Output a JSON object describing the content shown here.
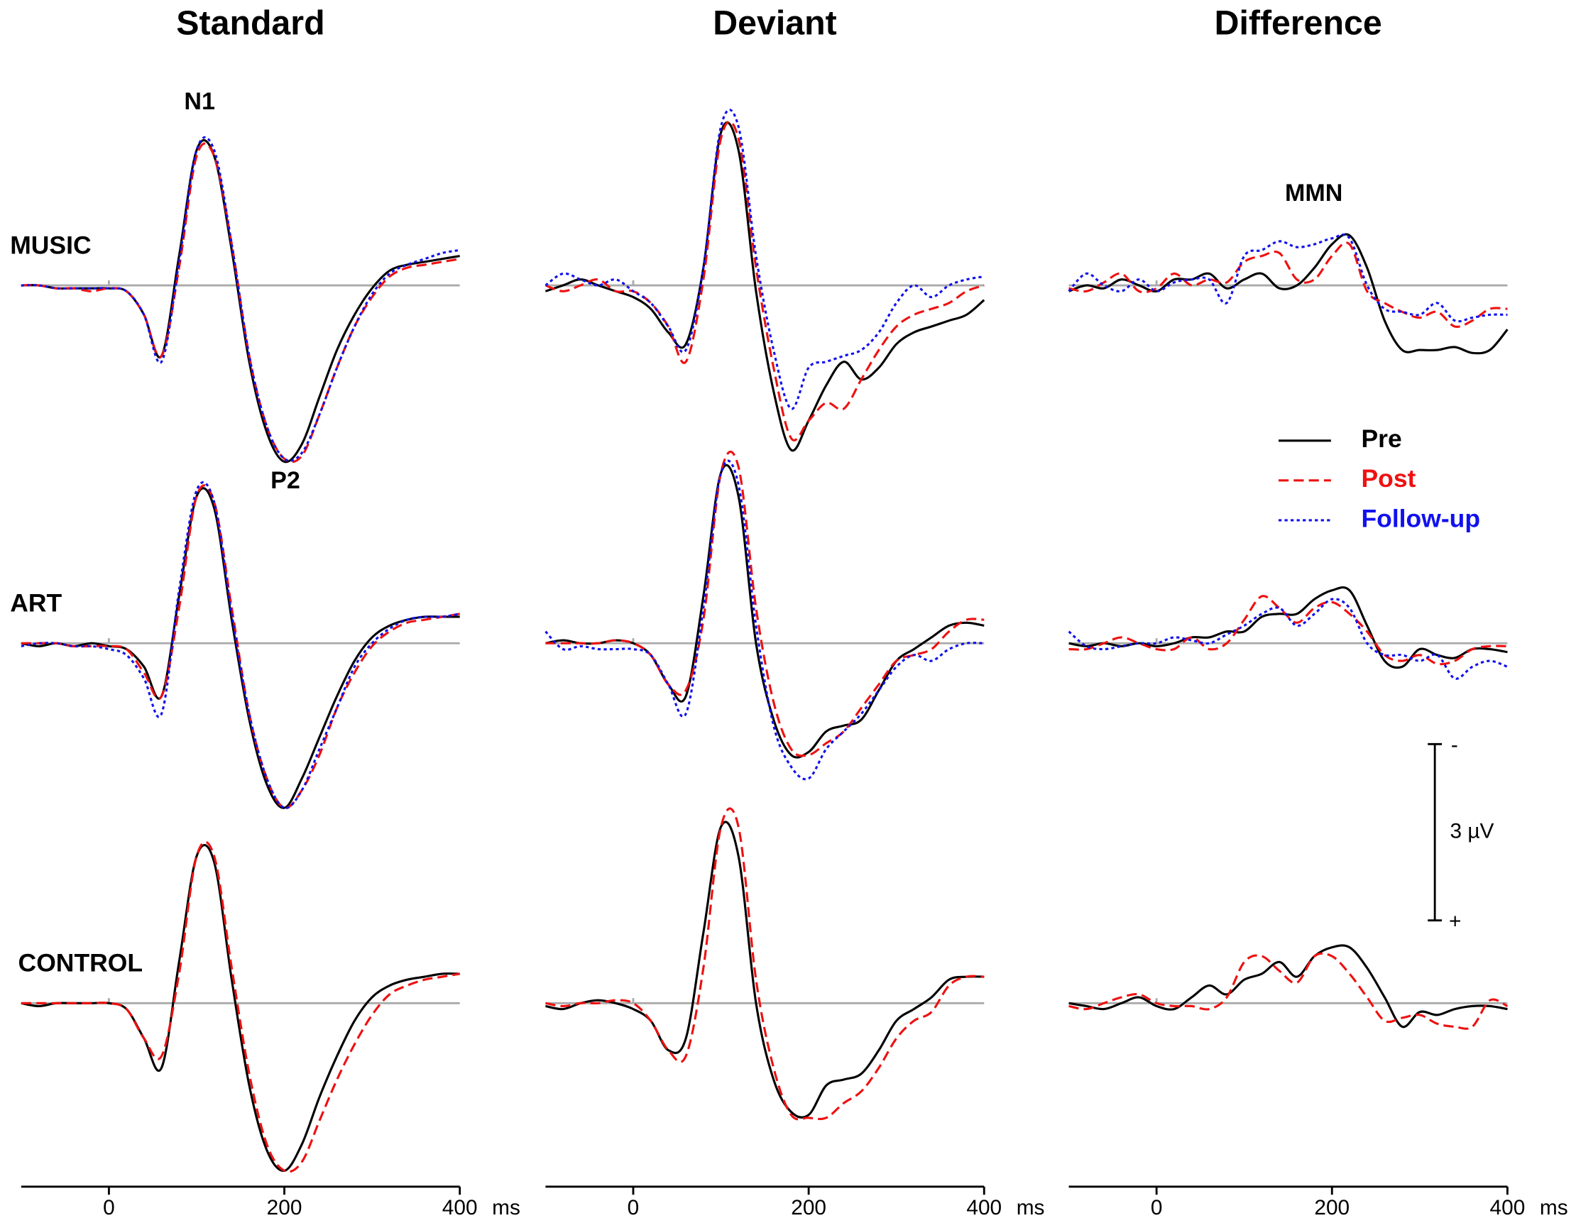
{
  "chart_data": [
    {
      "type": "line",
      "title": "Standard",
      "row_label": "MUSIC",
      "annotations": [
        "N1",
        "P2"
      ],
      "x": [
        -100,
        -80,
        -60,
        -40,
        -20,
        0,
        20,
        40,
        60,
        80,
        100,
        120,
        140,
        160,
        180,
        200,
        220,
        240,
        260,
        280,
        300,
        320,
        340,
        360,
        380,
        400
      ],
      "xlim": [
        -100,
        400
      ],
      "ylim": [
        -3.2,
        3.2
      ],
      "y_inverted": true,
      "zero_line": true,
      "series": [
        {
          "name": "Pre",
          "color": "#000000",
          "dash": "solid",
          "values": [
            0,
            0,
            0.05,
            0.05,
            0.05,
            0.05,
            0.1,
            0.5,
            1.2,
            -0.5,
            -2.3,
            -2.2,
            -0.6,
            1.3,
            2.5,
            3.0,
            2.7,
            1.9,
            1.1,
            0.5,
            0.05,
            -0.25,
            -0.35,
            -0.4,
            -0.45,
            -0.5
          ]
        },
        {
          "name": "Post",
          "color": "#ee1111",
          "dash": "dashed",
          "values": [
            0,
            0,
            0.05,
            0.05,
            0.1,
            0.05,
            0.1,
            0.5,
            1.2,
            -0.3,
            -2.2,
            -2.2,
            -0.7,
            1.2,
            2.4,
            2.95,
            2.9,
            2.2,
            1.4,
            0.7,
            0.2,
            -0.15,
            -0.3,
            -0.35,
            -0.4,
            -0.45
          ]
        },
        {
          "name": "Follow-up",
          "color": "#1111ee",
          "dash": "dotted",
          "values": [
            0,
            0,
            0.05,
            0.05,
            0.05,
            0.05,
            0.1,
            0.5,
            1.3,
            -0.4,
            -2.3,
            -2.3,
            -0.7,
            1.2,
            2.4,
            2.95,
            2.85,
            2.2,
            1.4,
            0.7,
            0.15,
            -0.2,
            -0.35,
            -0.45,
            -0.55,
            -0.6
          ]
        }
      ]
    },
    {
      "type": "line",
      "title": "Deviant",
      "x": [
        -100,
        -80,
        -60,
        -40,
        -20,
        0,
        20,
        40,
        60,
        80,
        100,
        120,
        140,
        160,
        180,
        200,
        220,
        240,
        260,
        280,
        300,
        320,
        340,
        360,
        380,
        400
      ],
      "xlim": [
        -100,
        400
      ],
      "ylim": [
        -3.2,
        3.2
      ],
      "y_inverted": true,
      "zero_line": true,
      "series": [
        {
          "name": "Pre",
          "color": "#000000",
          "dash": "solid",
          "values": [
            0.1,
            0,
            -0.1,
            0,
            0.1,
            0.2,
            0.4,
            0.8,
            1.0,
            -0.3,
            -2.6,
            -2.3,
            0.1,
            1.8,
            2.8,
            2.3,
            1.7,
            1.3,
            1.6,
            1.4,
            1.0,
            0.8,
            0.7,
            0.6,
            0.5,
            0.25
          ]
        },
        {
          "name": "Post",
          "color": "#ee1111",
          "dash": "dashed",
          "values": [
            0,
            0.1,
            0,
            -0.1,
            0.1,
            0.1,
            0.3,
            0.7,
            1.3,
            -0.1,
            -2.5,
            -2.5,
            -0.3,
            1.4,
            2.6,
            2.3,
            2.0,
            2.1,
            1.6,
            1.1,
            0.7,
            0.5,
            0.4,
            0.3,
            0.1,
            0
          ]
        },
        {
          "name": "Follow-up",
          "color": "#1111ee",
          "dash": "dotted",
          "values": [
            0,
            -0.2,
            -0.1,
            0,
            -0.1,
            0.1,
            0.3,
            0.7,
            1.1,
            -0.3,
            -2.7,
            -2.7,
            -0.5,
            1.1,
            2.1,
            1.4,
            1.3,
            1.2,
            1.1,
            0.8,
            0.3,
            0,
            0.2,
            0,
            -0.1,
            -0.15
          ]
        }
      ]
    },
    {
      "type": "line",
      "title": "Difference",
      "annotations": [
        "MMN"
      ],
      "legend": "right",
      "x": [
        -100,
        -80,
        -60,
        -40,
        -20,
        0,
        20,
        40,
        60,
        80,
        100,
        120,
        140,
        160,
        180,
        200,
        220,
        240,
        260,
        280,
        300,
        320,
        340,
        360,
        380,
        400
      ],
      "xlim": [
        -100,
        400
      ],
      "ylim": [
        -3.2,
        3.2
      ],
      "y_inverted": true,
      "zero_line": true,
      "series": [
        {
          "name": "Pre",
          "color": "#000000",
          "dash": "solid",
          "values": [
            0.1,
            0,
            0.05,
            -0.1,
            0,
            0.1,
            -0.1,
            -0.1,
            -0.2,
            0.05,
            -0.1,
            -0.2,
            0.05,
            0,
            -0.3,
            -0.7,
            -0.85,
            -0.3,
            0.6,
            1.1,
            1.1,
            1.1,
            1.05,
            1.15,
            1.1,
            0.75
          ]
        },
        {
          "name": "Post",
          "color": "#ee1111",
          "dash": "dashed",
          "values": [
            0.05,
            0.1,
            -0.05,
            -0.2,
            0.1,
            0.05,
            -0.2,
            0,
            -0.1,
            -0.05,
            -0.4,
            -0.5,
            -0.55,
            -0.1,
            -0.1,
            -0.5,
            -0.7,
            0.1,
            0.3,
            0.45,
            0.55,
            0.45,
            0.7,
            0.6,
            0.4,
            0.4
          ]
        },
        {
          "name": "Follow-up",
          "color": "#1111ee",
          "dash": "dotted",
          "values": [
            0.1,
            -0.2,
            0,
            0.1,
            -0.1,
            0.1,
            -0.05,
            -0.1,
            -0.1,
            0.3,
            -0.5,
            -0.6,
            -0.75,
            -0.65,
            -0.7,
            -0.8,
            -0.8,
            0,
            0.4,
            0.45,
            0.5,
            0.3,
            0.6,
            0.55,
            0.5,
            0.5
          ]
        }
      ]
    },
    {
      "type": "line",
      "row_label": "ART",
      "x": [
        -100,
        -80,
        -60,
        -40,
        -20,
        0,
        20,
        40,
        60,
        80,
        100,
        120,
        140,
        160,
        180,
        200,
        220,
        240,
        260,
        280,
        300,
        320,
        340,
        360,
        380,
        400
      ],
      "xlim": [
        -100,
        400
      ],
      "ylim": [
        -3.2,
        3.2
      ],
      "y_inverted": true,
      "zero_line": true,
      "series": [
        {
          "name": "Pre",
          "color": "#000000",
          "dash": "solid",
          "values": [
            0,
            0.05,
            0,
            0.05,
            0,
            0.05,
            0.1,
            0.4,
            0.9,
            -0.8,
            -2.5,
            -2.3,
            -0.4,
            1.3,
            2.4,
            2.8,
            2.3,
            1.6,
            0.9,
            0.3,
            -0.1,
            -0.3,
            -0.4,
            -0.45,
            -0.45,
            -0.45
          ]
        },
        {
          "name": "Post",
          "color": "#ee1111",
          "dash": "dashed",
          "values": [
            0,
            0,
            0,
            0.05,
            0.05,
            0.05,
            0.1,
            0.5,
            0.9,
            -0.6,
            -2.5,
            -2.4,
            -0.6,
            1.2,
            2.3,
            2.8,
            2.5,
            1.9,
            1.1,
            0.5,
            0.05,
            -0.2,
            -0.35,
            -0.4,
            -0.45,
            -0.5
          ]
        },
        {
          "name": "Follow-up",
          "color": "#1111ee",
          "dash": "dotted",
          "values": [
            0.05,
            0,
            0,
            0.05,
            0.05,
            0.1,
            0.2,
            0.6,
            1.2,
            -0.9,
            -2.6,
            -2.4,
            -0.5,
            1.2,
            2.3,
            2.8,
            2.5,
            1.8,
            1.1,
            0.4,
            0,
            -0.25,
            -0.4,
            -0.45,
            -0.45,
            -0.5
          ]
        }
      ]
    },
    {
      "type": "line",
      "x": [
        -100,
        -80,
        -60,
        -40,
        -20,
        0,
        20,
        40,
        60,
        80,
        100,
        120,
        140,
        160,
        180,
        200,
        220,
        240,
        260,
        280,
        300,
        320,
        340,
        360,
        380,
        400
      ],
      "xlim": [
        -100,
        400
      ],
      "ylim": [
        -3.2,
        3.2
      ],
      "y_inverted": true,
      "zero_line": true,
      "series": [
        {
          "name": "Pre",
          "color": "#000000",
          "dash": "solid",
          "values": [
            0,
            -0.05,
            0,
            0,
            -0.05,
            0,
            0.2,
            0.7,
            0.9,
            -0.8,
            -2.9,
            -2.5,
            0,
            1.3,
            1.9,
            1.85,
            1.5,
            1.4,
            1.3,
            0.8,
            0.3,
            0.1,
            -0.1,
            -0.3,
            -0.35,
            -0.3
          ]
        },
        {
          "name": "Post",
          "color": "#ee1111",
          "dash": "dashed",
          "values": [
            0,
            0,
            0,
            0,
            -0.05,
            0,
            0.2,
            0.7,
            0.8,
            -0.4,
            -2.9,
            -3.0,
            -0.6,
            1.0,
            1.8,
            1.9,
            1.7,
            1.5,
            1.1,
            0.7,
            0.3,
            0.2,
            0.1,
            -0.2,
            -0.4,
            -0.4
          ]
        },
        {
          "name": "Follow-up",
          "color": "#1111ee",
          "dash": "dotted",
          "values": [
            -0.2,
            0.1,
            0.05,
            0.1,
            0.1,
            0.1,
            0.2,
            0.7,
            1.2,
            -0.6,
            -2.9,
            -2.7,
            -0.3,
            1.4,
            2.1,
            2.3,
            1.8,
            1.5,
            1.2,
            0.8,
            0.4,
            0.2,
            0.3,
            0.1,
            0,
            0
          ]
        }
      ]
    },
    {
      "type": "line",
      "x": [
        -100,
        -80,
        -60,
        -40,
        -20,
        0,
        20,
        40,
        60,
        80,
        100,
        120,
        140,
        160,
        180,
        200,
        220,
        240,
        260,
        280,
        300,
        320,
        340,
        360,
        380,
        400
      ],
      "xlim": [
        -100,
        400
      ],
      "ylim": [
        -3.2,
        3.2
      ],
      "y_inverted": true,
      "zero_line": true,
      "series": [
        {
          "name": "Pre",
          "color": "#000000",
          "dash": "solid",
          "values": [
            0,
            0.05,
            0,
            0.05,
            0,
            0.05,
            0,
            -0.1,
            -0.1,
            -0.2,
            -0.2,
            -0.45,
            -0.5,
            -0.5,
            -0.75,
            -0.9,
            -0.9,
            -0.3,
            0.3,
            0.4,
            0.1,
            0.2,
            0.25,
            0.1,
            0.1,
            0.15
          ]
        },
        {
          "name": "Post",
          "color": "#ee1111",
          "dash": "dashed",
          "values": [
            0.1,
            0.1,
            0,
            -0.1,
            0,
            0.1,
            0.1,
            -0.1,
            0.1,
            0,
            -0.4,
            -0.8,
            -0.6,
            -0.35,
            -0.6,
            -0.7,
            -0.5,
            -0.2,
            0.2,
            0.3,
            0.2,
            0.35,
            0.3,
            0.1,
            0.05,
            0.05
          ]
        },
        {
          "name": "Follow-up",
          "color": "#1111ee",
          "dash": "dotted",
          "values": [
            -0.2,
            0.05,
            0.1,
            0.05,
            0,
            0,
            -0.1,
            -0.05,
            0,
            -0.15,
            -0.3,
            -0.5,
            -0.6,
            -0.3,
            -0.5,
            -0.75,
            -0.6,
            0,
            0.2,
            0.2,
            0.3,
            0.2,
            0.6,
            0.4,
            0.3,
            0.4
          ]
        }
      ]
    },
    {
      "type": "line",
      "row_label": "CONTROL",
      "x": [
        -100,
        -80,
        -60,
        -40,
        -20,
        0,
        20,
        40,
        60,
        80,
        100,
        120,
        140,
        160,
        180,
        200,
        220,
        240,
        260,
        280,
        300,
        320,
        340,
        360,
        380,
        400
      ],
      "xlim": [
        -100,
        400
      ],
      "xticks": [
        0,
        200,
        400
      ],
      "xlabel": "ms",
      "ylim": [
        -3.2,
        3.2
      ],
      "y_inverted": true,
      "zero_line": true,
      "series": [
        {
          "name": "Pre",
          "color": "#000000",
          "dash": "solid",
          "values": [
            0,
            0.05,
            0,
            0,
            0,
            0,
            0.1,
            0.6,
            1.1,
            -0.7,
            -2.5,
            -2.4,
            -0.4,
            1.4,
            2.5,
            2.85,
            2.4,
            1.6,
            0.9,
            0.3,
            -0.1,
            -0.3,
            -0.4,
            -0.45,
            -0.5,
            -0.5
          ]
        },
        {
          "name": "Post",
          "color": "#ee1111",
          "dash": "dashed",
          "values": [
            0,
            0,
            0,
            0,
            0,
            0,
            0.1,
            0.6,
            0.9,
            -0.5,
            -2.5,
            -2.5,
            -0.6,
            1.2,
            2.4,
            2.85,
            2.7,
            2.0,
            1.3,
            0.7,
            0.2,
            -0.15,
            -0.3,
            -0.4,
            -0.45,
            -0.5
          ]
        }
      ]
    },
    {
      "type": "line",
      "x": [
        -100,
        -80,
        -60,
        -40,
        -20,
        0,
        20,
        40,
        60,
        80,
        100,
        120,
        140,
        160,
        180,
        200,
        220,
        240,
        260,
        280,
        300,
        320,
        340,
        360,
        380,
        400
      ],
      "xlim": [
        -100,
        400
      ],
      "xticks": [
        0,
        200,
        400
      ],
      "xlabel": "ms",
      "ylim": [
        -3.2,
        3.2
      ],
      "y_inverted": true,
      "zero_line": true,
      "series": [
        {
          "name": "Pre",
          "color": "#000000",
          "dash": "solid",
          "values": [
            0.05,
            0.1,
            0,
            -0.05,
            0,
            0.1,
            0.3,
            0.8,
            0.6,
            -1.2,
            -3.0,
            -2.5,
            0,
            1.3,
            1.85,
            1.9,
            1.4,
            1.3,
            1.2,
            0.8,
            0.3,
            0.1,
            -0.1,
            -0.4,
            -0.45,
            -0.45
          ]
        },
        {
          "name": "Post",
          "color": "#ee1111",
          "dash": "dashed",
          "values": [
            0,
            0.05,
            0,
            0,
            -0.05,
            0,
            0.3,
            0.8,
            0.9,
            -0.6,
            -3.0,
            -3.0,
            -0.4,
            1.1,
            1.9,
            1.95,
            1.95,
            1.7,
            1.5,
            1.1,
            0.6,
            0.3,
            0.15,
            -0.3,
            -0.45,
            -0.45
          ]
        }
      ]
    },
    {
      "type": "line",
      "x": [
        -100,
        -80,
        -60,
        -40,
        -20,
        0,
        20,
        40,
        60,
        80,
        100,
        120,
        140,
        160,
        180,
        200,
        220,
        240,
        260,
        280,
        300,
        320,
        340,
        360,
        380,
        400
      ],
      "xlim": [
        -100,
        400
      ],
      "xticks": [
        0,
        200,
        400
      ],
      "xlabel": "ms",
      "ylim": [
        -3.2,
        3.2
      ],
      "y_inverted": true,
      "zero_line": true,
      "series": [
        {
          "name": "Pre",
          "color": "#000000",
          "dash": "solid",
          "values": [
            0,
            0.05,
            0.1,
            0,
            -0.1,
            0.05,
            0.1,
            -0.1,
            -0.3,
            -0.15,
            -0.4,
            -0.5,
            -0.7,
            -0.45,
            -0.8,
            -0.95,
            -0.95,
            -0.6,
            -0.1,
            0.4,
            0.15,
            0.2,
            0.1,
            0.05,
            0.05,
            0.1
          ]
        },
        {
          "name": "Post",
          "color": "#ee1111",
          "dash": "dashed",
          "values": [
            0.05,
            0.1,
            0,
            -0.1,
            -0.15,
            0,
            0.05,
            0.05,
            0.1,
            -0.1,
            -0.7,
            -0.8,
            -0.55,
            -0.35,
            -0.8,
            -0.8,
            -0.5,
            -0.1,
            0.3,
            0.25,
            0.2,
            0.35,
            0.4,
            0.4,
            -0.05,
            0.05
          ]
        }
      ]
    }
  ],
  "scale_bar": {
    "value": 3,
    "label": "3 µV",
    "top": "-",
    "bottom": "+"
  }
}
